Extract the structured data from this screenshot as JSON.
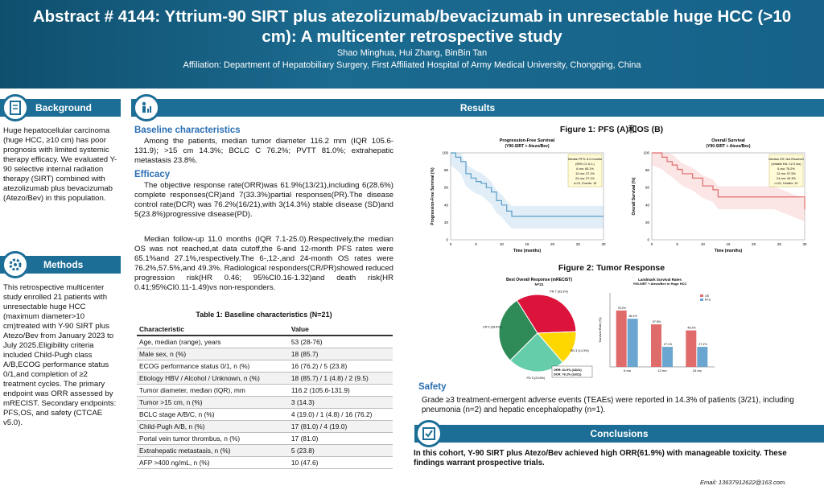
{
  "header": {
    "title": "Abstract # 4144:  Yttrium-90 SIRT plus atezolizumab/bevacizumab in unresectable huge HCC (>10 cm): A multicenter retrospective study",
    "authors": "Shao Minghua, Hui Zhang, BinBin Tan",
    "affiliation": "Affiliation: Department of Hepatobiliary Surgery, First Affiliated Hospital of Army Medical University, Chongqing, China"
  },
  "background": {
    "heading": "Background",
    "text": "Huge hepatocellular carcinoma (huge HCC, ≥10 cm) has poor prognosis with limited systemic therapy efficacy. We evaluated Y-90 selective internal radiation therapy (SIRT) combined with atezolizumab plus bevacizumab (Atezo/Bev) in this population."
  },
  "methods": {
    "heading": "Methods",
    "text": "This retrospective multicenter study enrolled 21 patients with unresectable huge HCC (maximum diameter>10 cm)treated with Y-90 SIRT plus Atezo/Bev from January 2023 to July 2025.Eligibility criteria included Child-Pugh class A/B,ECOG performance status 0/1,and completion of ≥2 treatment cycles. The primary endpoint was ORR assessed by mRECIST. Secondary endpoints: PFS,OS, and safety (CTCAE v5.0)."
  },
  "results": {
    "heading": "Results",
    "baseline_heading": "Baseline characteristics",
    "baseline_text": "Among the patients, median tumor diameter 116.2 mm (IQR 105.6-131.9); >15 cm 14.3%; BCLC C 76.2%; PVTT 81.0%; extrahepatic metastasis 23.8%.",
    "efficacy_heading": "Efficacy",
    "efficacy_text1": "The objective response rate(ORR)was 61.9%(13/21),including 6(28.6%) complete responses(CR)and 7(33.3%)partial responses(PR).The disease control rate(DCR) was 76.2%(16/21),with 3(14.3%) stable disease (SD)and 5(23.8%)progressive disease(PD).",
    "efficacy_text2": "Median follow-up 11.0 months (IQR 7.1-25.0).Respectively,the median OS was not reached,at data cutoff,the 6-and 12-month PFS rates were 65.1%and 27.1%,respectively.The 6-,12-,and 24-month OS rates were 76.2%,57.5%,and 49.3%. Radiological responders(CR/PR)showed reduced progression risk(HR 0.46; 95%CI0.16-1.32)and death risk(HR 0.41;95%CI0.11-1.49)vs non-responders.",
    "table_title": "Table 1: Baseline characteristics (N=21)",
    "table_headers": [
      "Characteristic",
      "Value"
    ],
    "table_rows": [
      [
        "Age, median (range), years",
        "53 (28-76)"
      ],
      [
        "Male sex, n (%)",
        "18 (85.7)"
      ],
      [
        "ECOG performance status 0/1, n (%)",
        "16 (76.2) / 5 (23.8)"
      ],
      [
        "Etiology HBV / Alcohol / Unknown, n (%)",
        "18 (85.7) / 1 (4.8) / 2 (9.5)"
      ],
      [
        "Tumor diameter, median (IQR), mm",
        "116.2 (105.6-131.9)"
      ],
      [
        "Tumor >15 cm, n (%)",
        "3 (14.3)"
      ],
      [
        "BCLC stage A/B/C, n (%)",
        "4 (19.0) / 1 (4.8) / 16 (76.2)"
      ],
      [
        "Child-Pugh A/B, n (%)",
        "17 (81.0) / 4 (19.0)"
      ],
      [
        "Portal vein tumor thrombus, n (%)",
        "17 (81.0)"
      ],
      [
        "Extrahepatic metastasis, n (%)",
        "5 (23.8)"
      ],
      [
        "AFP >400 ng/mL, n (%)",
        "10 (47.6)"
      ]
    ],
    "fig1_title": "Figure 1: PFS (A)和OS (B)",
    "pfs_title": "Progression-Free Survival",
    "pfs_sub": "(Y90-SIRT + Atezo/Bev)",
    "pfs_ylabel": "Progression-Free Survival (%)",
    "pfs_xlabel": "Time (months)",
    "pfs_box": [
      "Median PFS: 8.0 months",
      "(95% CI: 6.1-)",
      "6-mo: 65.1%",
      "12-mo: 27.1%",
      "24-mo: 27.1%",
      "n=21, Events: 15"
    ],
    "os_title": "Overall Survival",
    "os_sub": "(Y90-SIRT + Atezo/Bev)",
    "os_ylabel": "Overall Survival (%)",
    "os_xlabel": "Time (months)",
    "os_box": [
      "Median OS: Not Reached",
      "(reliable Est: 12.0 mo)",
      "6-mo: 76.2%",
      "12-mo: 57.5%",
      "24-mo: 49.3%",
      "n=21, Deaths: 10"
    ],
    "fig2_title": "Figure 2: Tumor Response",
    "pie_title": "Best Overall Response (mRECIST)",
    "pie_sub": "N=21",
    "pie_note": [
      "ORR: 61.9% (13/21)",
      "DCR: 76.2% (16/21)"
    ],
    "bar_title": "Landmark Survival Rates",
    "bar_sub": "Y90-SIRT + Atezo/Bev in Huge HCC",
    "bar_ylabel": "Survival Rate (%)",
    "safety_heading": "Safety",
    "safety_text": "Grade ≥3 treatment-emergent adverse events (TEAEs) were reported in 14.3% of patients (3/21), including pneumonia (n=2) and hepatic encephalopathy (n=1)."
  },
  "conclusions": {
    "heading": "Conclusions",
    "text": "In this cohort, Y-90 SIRT plus Atezo/Bev achieved high ORR(61.9%) with manageable toxicity. These findings warrant prospective trials."
  },
  "email": "Email: 13637912622@163.com.",
  "colors": {
    "header": "#1b6a8f",
    "bar": "#1c6e97",
    "pfs": "#6aa6cf",
    "os": "#e06b6b",
    "cr": "#2e8b57",
    "pr": "#dc143c",
    "sd": "#ffd700",
    "pd": "#66cdaa"
  },
  "chart_data": [
    {
      "type": "line",
      "title": "Progression-Free Survival",
      "xlabel": "Time (months)",
      "ylabel": "Progression-Free Survival (%)",
      "ylim": [
        0,
        100
      ],
      "xlim": [
        0,
        30
      ],
      "series": [
        {
          "name": "PFS",
          "x": [
            0,
            1,
            2,
            3,
            4,
            5,
            6,
            7,
            8,
            9,
            10,
            11,
            12,
            13,
            14,
            26,
            30
          ],
          "y": [
            100,
            95,
            90,
            76,
            71,
            67,
            65,
            60,
            55,
            45,
            40,
            33,
            27,
            27,
            27,
            27,
            27
          ]
        }
      ]
    },
    {
      "type": "line",
      "title": "Overall Survival",
      "xlabel": "Time (months)",
      "ylabel": "Overall Survival (%)",
      "ylim": [
        0,
        100
      ],
      "xlim": [
        0,
        30
      ],
      "series": [
        {
          "name": "OS",
          "x": [
            0,
            2,
            3,
            4,
            5,
            6,
            8,
            10,
            12,
            13,
            24,
            30
          ],
          "y": [
            100,
            95,
            90,
            86,
            81,
            76,
            71,
            62,
            57.5,
            49.3,
            49.3,
            35
          ]
        }
      ]
    },
    {
      "type": "pie",
      "title": "Best Overall Response (mRECIST)",
      "categories": [
        "CR",
        "PR",
        "SD",
        "PD"
      ],
      "values": [
        6,
        7,
        3,
        5
      ],
      "labels": [
        "CR 6 (28.6%)",
        "PR 7 (33.3%)",
        "SD 3 (14.3%)",
        "PD 5 (23.8%)"
      ]
    },
    {
      "type": "bar",
      "title": "Landmark Survival Rates",
      "categories": [
        "6 mo",
        "12 mo",
        "24 mo"
      ],
      "ylim": [
        0,
        100
      ],
      "series": [
        {
          "name": "OS",
          "values": [
            76.2,
            57.5,
            49.3
          ]
        },
        {
          "name": "PFS",
          "values": [
            65.1,
            27.1,
            27.1
          ]
        }
      ]
    }
  ]
}
